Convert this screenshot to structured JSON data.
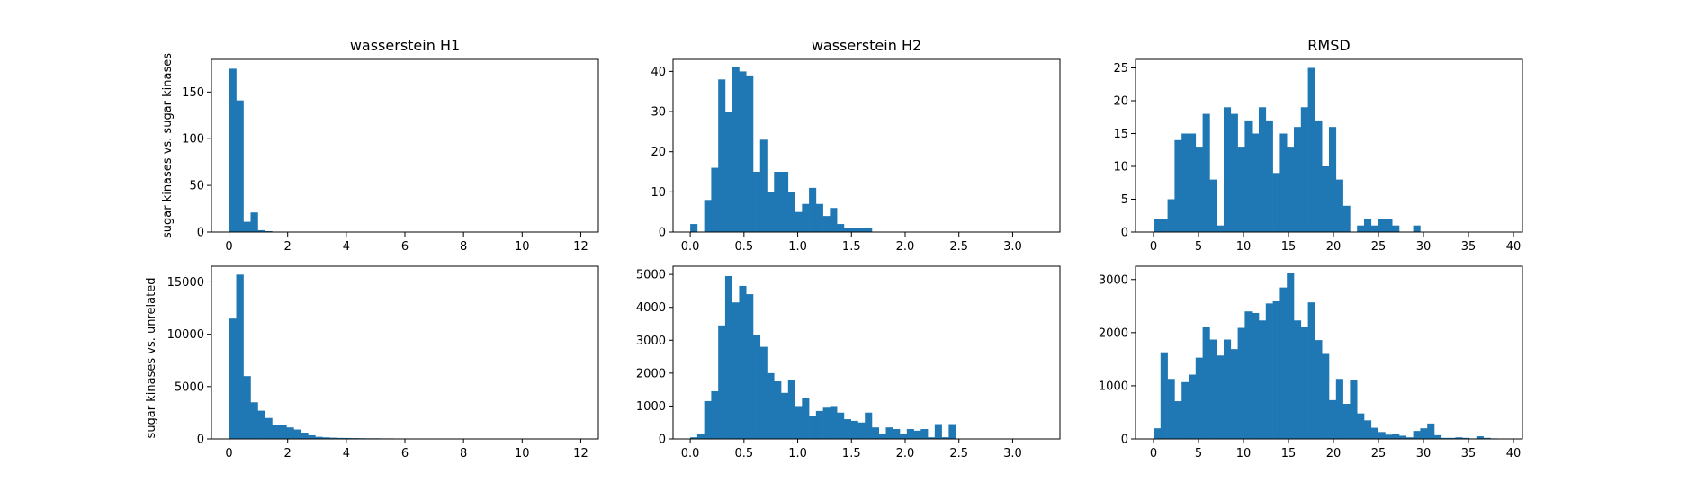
{
  "colors": {
    "bar": "#1f77b4",
    "background": "#ffffff",
    "axis": "#000000"
  },
  "row_labels": [
    "sugar kinases vs. sugar kinases",
    "sugar kinases vs. unrelated"
  ],
  "chart_data": [
    {
      "type": "bar",
      "title": "wasserstein H1",
      "row": 0,
      "col": 0,
      "xlim": [
        -0.6,
        12.6
      ],
      "ylim": [
        0,
        185
      ],
      "xticks": [
        0,
        2,
        4,
        6,
        8,
        10,
        12
      ],
      "yticks": [
        0,
        50,
        100,
        150
      ],
      "bin_start": 0.0,
      "bin_width": 0.245,
      "values": [
        175,
        141,
        11,
        21,
        2,
        1
      ]
    },
    {
      "type": "bar",
      "title": "wasserstein H2",
      "row": 0,
      "col": 1,
      "xlim": [
        -0.16,
        3.44
      ],
      "ylim": [
        0,
        43
      ],
      "xticks": [
        0.0,
        0.5,
        1.0,
        1.5,
        2.0,
        2.5,
        3.0
      ],
      "yticks": [
        0,
        10,
        20,
        30,
        40
      ],
      "bin_start": 0.0,
      "bin_width": 0.065,
      "values": [
        2,
        0,
        8,
        16,
        38,
        30,
        41,
        40,
        39,
        15,
        23,
        10,
        15,
        15,
        10,
        5,
        7,
        11,
        7,
        4,
        6,
        2,
        1,
        1,
        1,
        1
      ]
    },
    {
      "type": "bar",
      "title": "RMSD",
      "row": 0,
      "col": 2,
      "xlim": [
        -2.0,
        41.0
      ],
      "ylim": [
        0,
        26.3
      ],
      "xticks": [
        0,
        5,
        10,
        15,
        20,
        25,
        30,
        35,
        40
      ],
      "yticks": [
        0,
        5,
        10,
        15,
        20,
        25
      ],
      "bin_start": 0.0,
      "bin_width": 0.78,
      "values": [
        2,
        2,
        5,
        14,
        15,
        15,
        13,
        18,
        8,
        1,
        19,
        18,
        13,
        17,
        15,
        19,
        17,
        9,
        15,
        13,
        16,
        19,
        25,
        17,
        10,
        16,
        8,
        4,
        0,
        1,
        2,
        1,
        2,
        2,
        1,
        0,
        0,
        1
      ]
    },
    {
      "type": "bar",
      "title": "",
      "row": 1,
      "col": 0,
      "xlim": [
        -0.6,
        12.6
      ],
      "ylim": [
        0,
        16500
      ],
      "xticks": [
        0,
        2,
        4,
        6,
        8,
        10,
        12
      ],
      "yticks": [
        0,
        5000,
        10000,
        15000
      ],
      "bin_start": 0.0,
      "bin_width": 0.245,
      "values": [
        11500,
        15700,
        6000,
        3500,
        2700,
        2000,
        1300,
        1300,
        1100,
        900,
        600,
        350,
        200,
        150,
        120,
        100,
        90,
        80,
        70,
        60,
        60,
        50,
        50,
        40,
        40,
        30
      ]
    },
    {
      "type": "bar",
      "title": "",
      "row": 1,
      "col": 1,
      "xlim": [
        -0.16,
        3.44
      ],
      "ylim": [
        0,
        5250
      ],
      "xticks": [
        0.0,
        0.5,
        1.0,
        1.5,
        2.0,
        2.5,
        3.0
      ],
      "yticks": [
        0,
        1000,
        2000,
        3000,
        4000,
        5000
      ],
      "bin_start": 0.0,
      "bin_width": 0.065,
      "values": [
        50,
        150,
        1150,
        1450,
        3450,
        4950,
        4150,
        4650,
        4400,
        3150,
        2800,
        2000,
        1750,
        1400,
        1800,
        1000,
        1250,
        700,
        850,
        950,
        1000,
        800,
        600,
        550,
        500,
        800,
        350,
        150,
        350,
        300,
        150,
        300,
        250,
        300,
        50,
        450,
        50,
        450
      ]
    },
    {
      "type": "bar",
      "title": "",
      "row": 1,
      "col": 2,
      "xlim": [
        -2.0,
        41.0
      ],
      "ylim": [
        0,
        3250
      ],
      "xticks": [
        0,
        5,
        10,
        15,
        20,
        25,
        30,
        35,
        40
      ],
      "yticks": [
        0,
        1000,
        2000,
        3000
      ],
      "bin_start": 0.0,
      "bin_width": 0.78,
      "values": [
        200,
        1630,
        1130,
        710,
        1070,
        1210,
        1530,
        2110,
        1870,
        1570,
        1870,
        1690,
        2090,
        2400,
        2370,
        2230,
        2550,
        2590,
        2850,
        3120,
        2230,
        2100,
        2570,
        1860,
        1600,
        730,
        1130,
        660,
        1100,
        480,
        350,
        210,
        130,
        80,
        100,
        60,
        30,
        150,
        200,
        290,
        70,
        20,
        20,
        30,
        20,
        10,
        50,
        20,
        10
      ]
    }
  ]
}
